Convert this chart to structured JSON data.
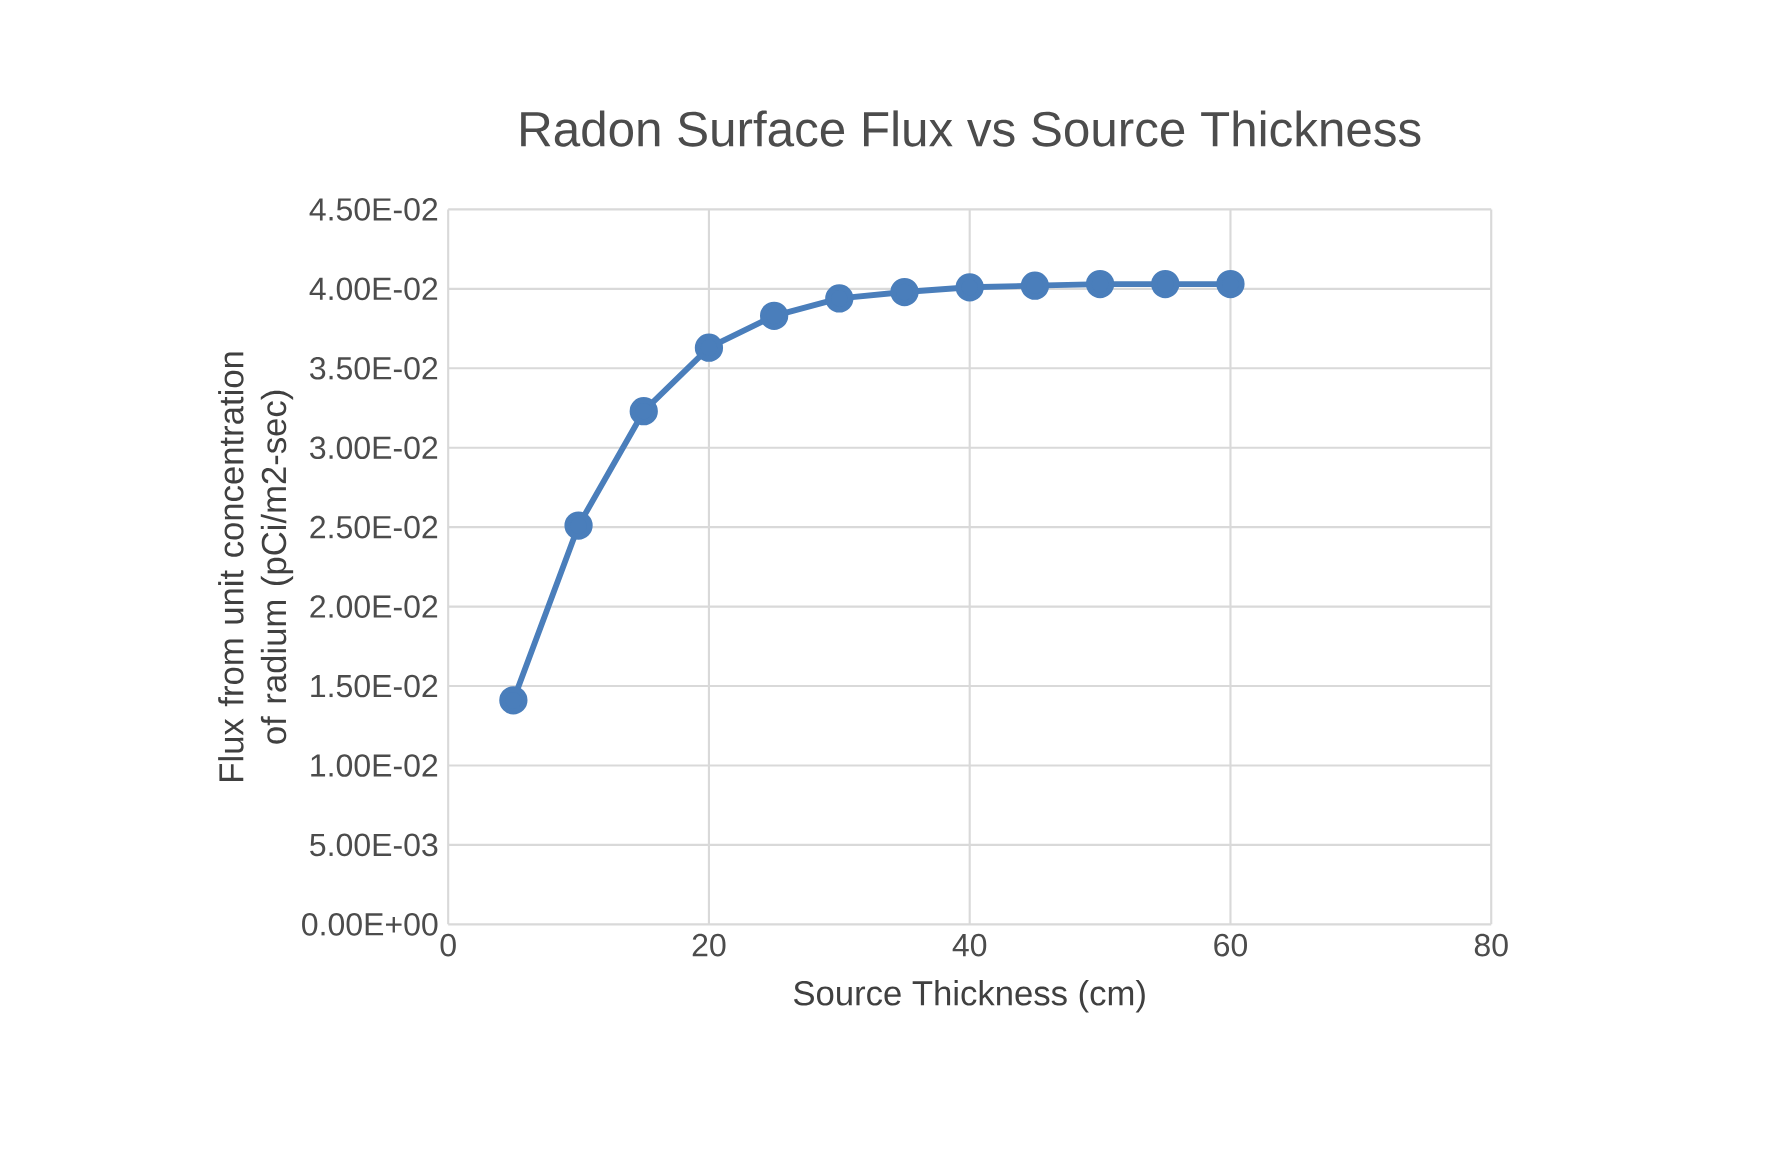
{
  "chart_data": {
    "type": "line",
    "title": "Radon Surface Flux vs Source Thickness",
    "xlabel": "Source Thickness (cm)",
    "ylabel": "Flux from unit concentration of radium (pCi/m2-sec)",
    "x": [
      5,
      10,
      15,
      20,
      25,
      30,
      35,
      40,
      45,
      50,
      55,
      60
    ],
    "series": [
      {
        "color": "#4a7ebb",
        "values": [
          0.0141,
          0.0251,
          0.0323,
          0.0363,
          0.0383,
          0.0394,
          0.0398,
          0.0401,
          0.0402,
          0.0403,
          0.0403,
          0.0403
        ]
      }
    ],
    "xlim": [
      0,
      80
    ],
    "xticks": [
      0,
      20,
      40,
      60,
      80
    ],
    "ylim": [
      0,
      0.045
    ],
    "yticks": [
      {
        "value": 0,
        "label": "0.00E+00"
      },
      {
        "value": 0.005,
        "label": "5.00E-03"
      },
      {
        "value": 0.01,
        "label": "1.00E-02"
      },
      {
        "value": 0.015,
        "label": "1.50E-02"
      },
      {
        "value": 0.02,
        "label": "2.00E-02"
      },
      {
        "value": 0.025,
        "label": "2.50E-02"
      },
      {
        "value": 0.03,
        "label": "3.00E-02"
      },
      {
        "value": 0.035,
        "label": "3.50E-02"
      },
      {
        "value": 0.04,
        "label": "4.00E-02"
      },
      {
        "value": 0.045,
        "label": "4.50E-02"
      }
    ],
    "grid": true,
    "marker": "circle",
    "line_style": "solid"
  }
}
